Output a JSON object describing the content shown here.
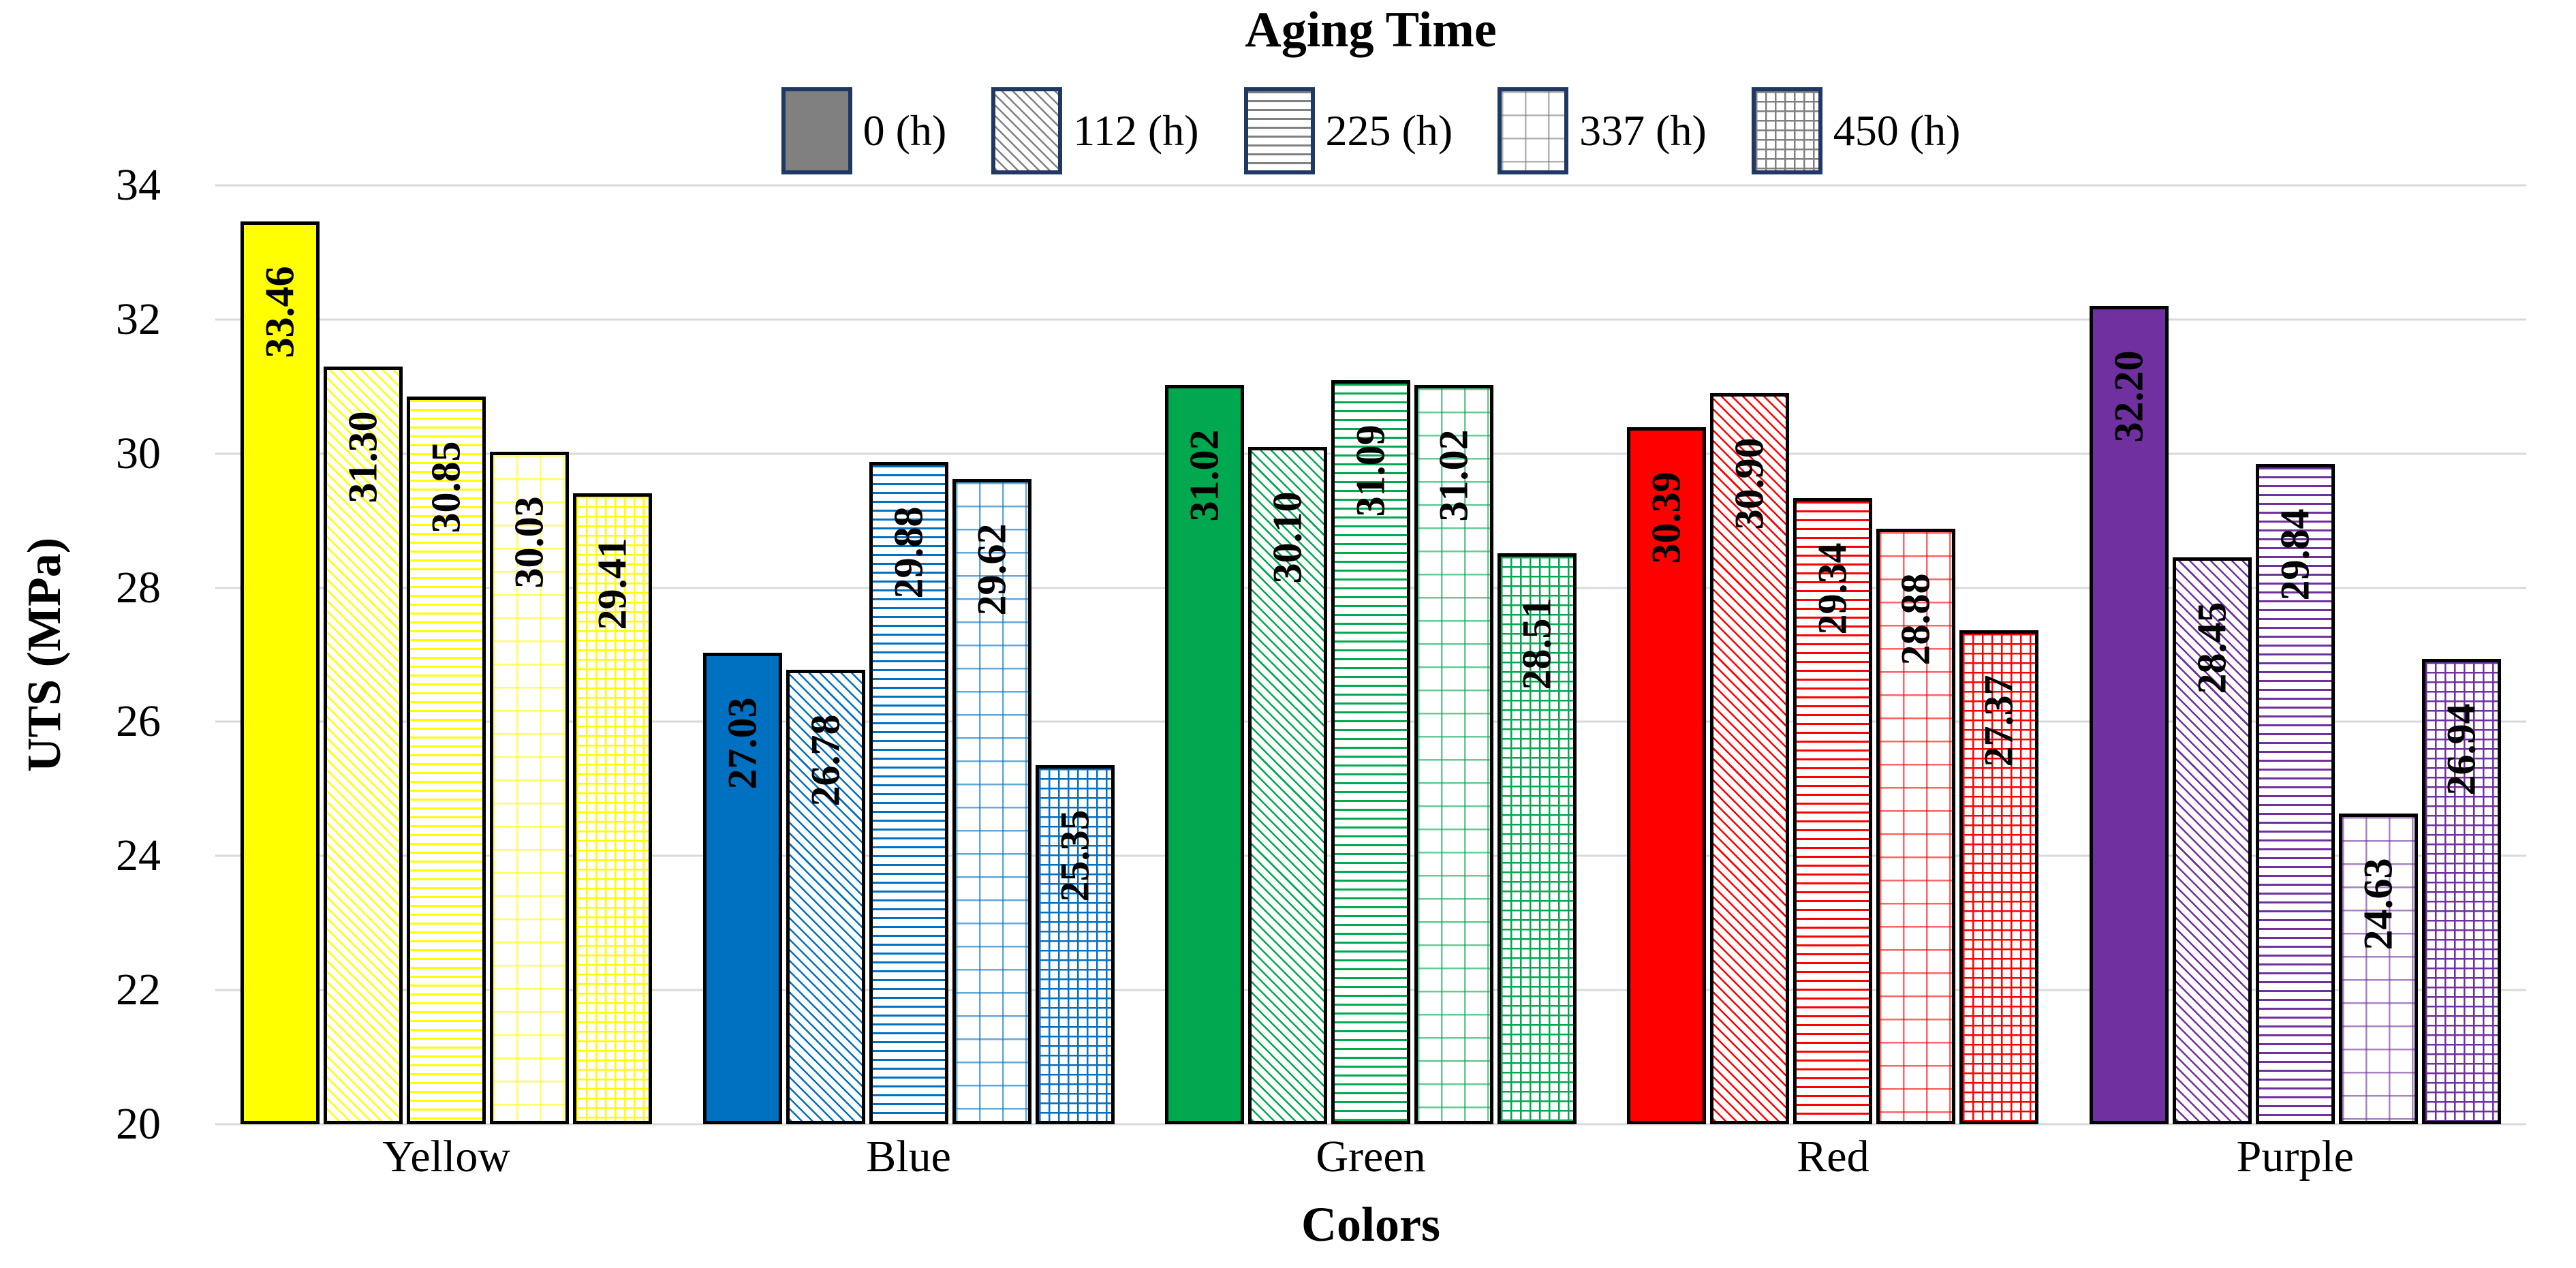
{
  "title": "Aging Time",
  "axes": {
    "y_title": "UTS (MPa)",
    "x_title": "Colors",
    "y_ticks": [
      "34",
      "32",
      "30",
      "28",
      "26",
      "24",
      "22",
      "20"
    ]
  },
  "legend": {
    "title": "Aging Time",
    "swatch_fill": "#808080",
    "swatch_line_color": "#808080",
    "swatch_border_color": "#1F3864",
    "items": [
      {
        "label": "0 (h)",
        "pattern": "solid"
      },
      {
        "label": "112 (h)",
        "pattern": "diag"
      },
      {
        "label": "225 (h)",
        "pattern": "horiz"
      },
      {
        "label": "337 (h)",
        "pattern": "grid-dashed"
      },
      {
        "label": "450 (h)",
        "pattern": "grid-fine"
      }
    ]
  },
  "chart_data": {
    "type": "bar",
    "title": "Aging Time",
    "xlabel": "Colors",
    "ylabel": "UTS (MPa)",
    "ylim": [
      20,
      34
    ],
    "y_tick_step": 2,
    "grid": true,
    "legend_position": "top",
    "value_label_format": "0.00",
    "value_labels_rotated_deg": -90,
    "categories": [
      "Yellow",
      "Blue",
      "Green",
      "Red",
      "Purple"
    ],
    "category_colors": [
      "#FFFF00",
      "#0070C0",
      "#00A84F",
      "#FF0000",
      "#7030A0"
    ],
    "series": [
      {
        "name": "0 (h)",
        "pattern": "solid",
        "values": [
          33.46,
          27.03,
          31.02,
          30.39,
          32.2
        ]
      },
      {
        "name": "112 (h)",
        "pattern": "diag",
        "values": [
          31.3,
          26.78,
          30.1,
          30.9,
          28.45
        ]
      },
      {
        "name": "225 (h)",
        "pattern": "horiz",
        "values": [
          30.85,
          29.88,
          31.09,
          29.34,
          29.84
        ]
      },
      {
        "name": "337 (h)",
        "pattern": "grid-dashed",
        "values": [
          30.03,
          29.62,
          31.02,
          28.88,
          24.63
        ]
      },
      {
        "name": "450 (h)",
        "pattern": "grid-fine",
        "values": [
          29.41,
          25.35,
          28.51,
          27.37,
          26.94
        ]
      }
    ]
  },
  "style_colors": {
    "gridline": "#D9D9D9",
    "bar_border": "#000000",
    "data_label": "#000000"
  }
}
